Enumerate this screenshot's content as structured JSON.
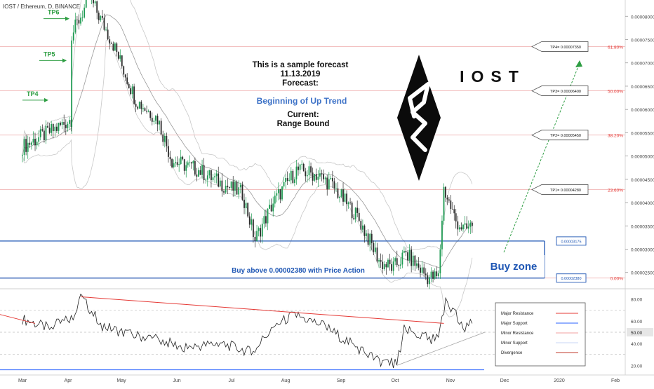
{
  "header": {
    "symbol": "IOST / Ethereum, D, BINANCE"
  },
  "forecast_note": {
    "line1": "This is a sample forecast",
    "line2": "11.13.2019",
    "line3": "Forecast:",
    "forecast": "Beginning of Up Trend",
    "current_label": "Current:",
    "current": "Range Bound"
  },
  "logo_text": "IOST",
  "buy_note": "Buy above 0.00002380 with Price Action",
  "buy_zone_label": "Buy zone",
  "colors": {
    "candle_up": "#1e9a52",
    "candle_down": "#2b2b2b",
    "fib_line": "#f1b5b5",
    "fib_text": "#e53935",
    "zone_blue": "#1e56b4",
    "forecast_text": "#3d72c7",
    "arrow_green": "#2e9e43",
    "tp_green": "#2e9e43",
    "rsi_red": "#e53935",
    "rsi_blue": "#2962ff"
  },
  "chart_data": [
    {
      "type": "candlestick",
      "title": "IOST / Ethereum, D, BINANCE",
      "x_axis_labels": [
        "Mar",
        "Apr",
        "May",
        "Jun",
        "Jul",
        "Aug",
        "Sep",
        "Oct",
        "Nov",
        "Dec",
        "2020",
        "Feb"
      ],
      "y_axis": {
        "ticks": [
          "0.00008000",
          "0.00007500",
          "0.00007000",
          "0.00006500",
          "0.00006000",
          "0.00005500",
          "0.00005000",
          "0.00004500",
          "0.00004000",
          "0.00003500",
          "0.00003000",
          "0.00002500"
        ],
        "ylim": [
          2.15e-05,
          8.35e-05
        ]
      },
      "approx_close_path": [
        {
          "date": "Mar 1",
          "close": 5.2e-05
        },
        {
          "date": "Mar 20",
          "close": 5.6e-05
        },
        {
          "date": "Mar 28",
          "close": 5.8e-05
        },
        {
          "date": "Apr 3",
          "close": 7.6e-05
        },
        {
          "date": "Apr 13",
          "close": 8.4e-05
        },
        {
          "date": "Apr 26",
          "close": 7.4e-05
        },
        {
          "date": "May 9",
          "close": 6.2e-05
        },
        {
          "date": "May 21",
          "close": 5.8e-05
        },
        {
          "date": "May 29",
          "close": 4.9e-05
        },
        {
          "date": "Jun 13",
          "close": 4.7e-05
        },
        {
          "date": "Jun 26",
          "close": 4.4e-05
        },
        {
          "date": "Jul 7",
          "close": 4.2e-05
        },
        {
          "date": "Jul 14",
          "close": 3.2e-05
        },
        {
          "date": "Jul 24",
          "close": 4e-05
        },
        {
          "date": "Aug 7",
          "close": 4.7e-05
        },
        {
          "date": "Aug 18",
          "close": 4.6e-05
        },
        {
          "date": "Aug 26",
          "close": 4.4e-05
        },
        {
          "date": "Sep 10",
          "close": 3.7e-05
        },
        {
          "date": "Sep 23",
          "close": 2.7e-05
        },
        {
          "date": "Sep 30",
          "close": 2.6e-05
        },
        {
          "date": "Oct 7",
          "close": 2.9e-05
        },
        {
          "date": "Oct 19",
          "close": 2.4e-05
        },
        {
          "date": "Oct 25",
          "close": 2.4e-05
        },
        {
          "date": "Oct 28",
          "close": 4.3e-05
        },
        {
          "date": "Nov 4",
          "close": 3.6e-05
        },
        {
          "date": "Nov 9",
          "close": 3.4e-05
        },
        {
          "date": "Nov 13",
          "close": 3.5e-05
        }
      ],
      "fibonacci_levels": [
        {
          "label": "61.80%",
          "price": 7.35e-05
        },
        {
          "label": "50.00%",
          "price": 6.4e-05
        },
        {
          "label": "38.20%",
          "price": 5.45e-05
        },
        {
          "label": "23.60%",
          "price": 4.28e-05
        },
        {
          "label": "0.00%",
          "price": 2.38e-05
        }
      ],
      "targets": [
        {
          "label": "TP4= 0.00007350",
          "price": 7.35e-05
        },
        {
          "label": "TP3= 0.00006400",
          "price": 6.4e-05
        },
        {
          "label": "TP2= 0.00005450",
          "price": 5.45e-05
        },
        {
          "label": "TP1= 0.00004280",
          "price": 4.28e-05
        }
      ],
      "past_targets": [
        {
          "label": "TP6",
          "price": 7.95e-05
        },
        {
          "label": "TP5",
          "price": 7.05e-05
        },
        {
          "label": "TP4",
          "price": 6.2e-05
        }
      ],
      "buy_zone": {
        "upper": 3.175e-05,
        "lower": 2.38e-05,
        "upper_label": "0.00003175",
        "lower_label": "0.00002380"
      }
    },
    {
      "type": "line",
      "name": "RSI",
      "y_axis": {
        "ticks": [
          "80.00",
          "60.00",
          "40.00",
          "20.00"
        ],
        "current": "50.00",
        "ylim": [
          12,
          88
        ]
      },
      "approx_values": [
        {
          "date": "Mar 1",
          "value": 62
        },
        {
          "date": "Mar 15",
          "value": 54
        },
        {
          "date": "Mar 28",
          "value": 62
        },
        {
          "date": "Apr 8",
          "value": 82
        },
        {
          "date": "Apr 20",
          "value": 56
        },
        {
          "date": "May 5",
          "value": 48
        },
        {
          "date": "May 20",
          "value": 44
        },
        {
          "date": "Jun 5",
          "value": 36
        },
        {
          "date": "Jun 25",
          "value": 40
        },
        {
          "date": "Jul 12",
          "value": 32
        },
        {
          "date": "Jul 25",
          "value": 56
        },
        {
          "date": "Aug 6",
          "value": 66
        },
        {
          "date": "Aug 22",
          "value": 56
        },
        {
          "date": "Sep 8",
          "value": 38
        },
        {
          "date": "Sep 22",
          "value": 24
        },
        {
          "date": "Oct 2",
          "value": 22
        },
        {
          "date": "Oct 6",
          "value": 52
        },
        {
          "date": "Oct 20",
          "value": 44
        },
        {
          "date": "Oct 25",
          "value": 44
        },
        {
          "date": "Oct 29",
          "value": 76
        },
        {
          "date": "Nov 5",
          "value": 64
        },
        {
          "date": "Nov 9",
          "value": 55
        },
        {
          "date": "Nov 13",
          "value": 58
        }
      ],
      "major_resistance": {
        "from": {
          "date": "Apr 8",
          "value": 82
        },
        "to": {
          "date": "Oct 28",
          "value": 58
        }
      },
      "major_support": 16,
      "divergence": {
        "from": {
          "date": "Oct 2",
          "value": 20
        },
        "to": {
          "date": "Nov 20",
          "value": 50
        }
      },
      "legend": [
        "Major Resistance",
        "Major Support",
        "Minor Resistance",
        "Minor Support",
        "Divergence"
      ]
    }
  ]
}
